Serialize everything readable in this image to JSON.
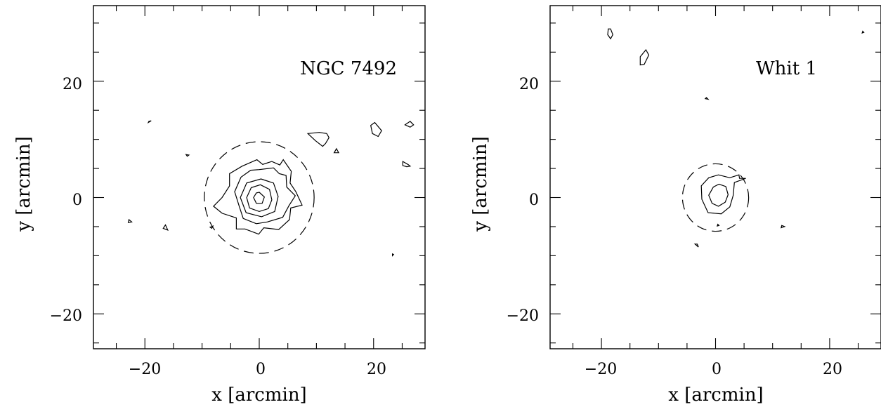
{
  "chart_data": [
    {
      "type": "contour",
      "title": "NGC 7492",
      "xlabel": "x [arcmin]",
      "ylabel": "y [arcmin]",
      "xlim": [
        -29,
        29
      ],
      "ylim": [
        -26,
        33
      ],
      "x_ticks_major": [
        -20,
        0,
        20
      ],
      "y_ticks_major": [
        -20,
        0,
        20
      ],
      "x_tick_labels": [
        "−20",
        "0",
        "20"
      ],
      "y_tick_labels": [
        "−20",
        "0",
        "20"
      ],
      "minor_tick_step": 5,
      "dashed_circle": {
        "center": [
          0,
          0
        ],
        "radius": 9.6
      },
      "contours": [
        [
          [
            0,
            0.9
          ],
          [
            0.9,
            0.1
          ],
          [
            0.5,
            -1
          ],
          [
            -0.5,
            -1
          ],
          [
            -1,
            0
          ],
          [
            -0.5,
            0.8
          ]
        ],
        [
          [
            0.2,
            2.2
          ],
          [
            1.8,
            1.4
          ],
          [
            2.2,
            -0.4
          ],
          [
            1.6,
            -1.9
          ],
          [
            0,
            -2.4
          ],
          [
            -1.7,
            -1.8
          ],
          [
            -2.2,
            0
          ],
          [
            -1.4,
            1.7
          ]
        ],
        [
          [
            0.3,
            3.2
          ],
          [
            2.5,
            2.5
          ],
          [
            3.3,
            0.2
          ],
          [
            2.7,
            -2.4
          ],
          [
            0.4,
            -3.3
          ],
          [
            -2.3,
            -2.6
          ],
          [
            -3.3,
            0
          ],
          [
            -2.2,
            2.5
          ]
        ],
        [
          [
            0,
            4.8
          ],
          [
            2.5,
            5.1
          ],
          [
            3.5,
            4.1
          ],
          [
            4.7,
            3.8
          ],
          [
            4.8,
            1.8
          ],
          [
            6.3,
            0.3
          ],
          [
            5.2,
            -1.4
          ],
          [
            4.1,
            -3.4
          ],
          [
            1.4,
            -4.2
          ],
          [
            -0.5,
            -4.5
          ],
          [
            -2.8,
            -3.6
          ],
          [
            -3.5,
            -1.5
          ],
          [
            -4.3,
            1
          ],
          [
            -3.2,
            3.5
          ],
          [
            -1.5,
            4.7
          ]
        ],
        [
          [
            -0.4,
            6.5
          ],
          [
            0.6,
            5.7
          ],
          [
            2.2,
            6.2
          ],
          [
            3.6,
            5.6
          ],
          [
            4.2,
            6.5
          ],
          [
            5.6,
            4.5
          ],
          [
            5.4,
            2.5
          ],
          [
            6.4,
            1
          ],
          [
            7.5,
            -1.3
          ],
          [
            5.5,
            -1.8
          ],
          [
            5.3,
            -3.8
          ],
          [
            3.4,
            -5.5
          ],
          [
            0.8,
            -5.2
          ],
          [
            -0.1,
            -6.3
          ],
          [
            -2.5,
            -5.4
          ],
          [
            -4,
            -5.4
          ],
          [
            -4,
            -3.5
          ],
          [
            -6.5,
            -2.7
          ],
          [
            -8,
            -1.5
          ],
          [
            -6.5,
            0
          ],
          [
            -5.2,
            2
          ],
          [
            -5.2,
            4.1
          ],
          [
            -3,
            5.4
          ]
        ],
        [
          [
            10.5,
            11.2
          ],
          [
            11.8,
            11
          ],
          [
            12.2,
            10.3
          ],
          [
            11.6,
            9.3
          ],
          [
            11.1,
            8.8
          ],
          [
            9.8,
            9.8
          ],
          [
            8.5,
            11
          ]
        ],
        [
          [
            13.5,
            8.4
          ],
          [
            13.9,
            7.7
          ],
          [
            13.1,
            7.7
          ]
        ],
        [
          [
            19.5,
            12.4
          ],
          [
            20.2,
            12.9
          ],
          [
            21.4,
            11.5
          ],
          [
            20.8,
            10.5
          ],
          [
            19.8,
            11
          ]
        ],
        [
          [
            25.5,
            12.5
          ],
          [
            26.4,
            13.1
          ],
          [
            27,
            12.5
          ],
          [
            26.4,
            12.1
          ]
        ],
        [
          [
            25.1,
            6.2
          ],
          [
            26,
            5.7
          ],
          [
            26.4,
            5.4
          ],
          [
            25.8,
            5.3
          ],
          [
            25.1,
            5.5
          ]
        ],
        [
          [
            -19.3,
            13.1
          ],
          [
            -18.9,
            13.2
          ],
          [
            -19.4,
            12.9
          ]
        ],
        [
          [
            -12.8,
            7.4
          ],
          [
            -12.3,
            7.3
          ],
          [
            -12.6,
            7.1
          ]
        ],
        [
          [
            -22.8,
            -3.8
          ],
          [
            -22.3,
            -4.2
          ],
          [
            -22.9,
            -4.3
          ]
        ],
        [
          [
            -16.4,
            -4.7
          ],
          [
            -16,
            -5.6
          ],
          [
            -16.8,
            -5.3
          ]
        ],
        [
          [
            23.3,
            -10
          ],
          [
            23.5,
            -9.8
          ],
          [
            23.3,
            -9.7
          ]
        ],
        [
          [
            -8.6,
            -5.1
          ],
          [
            -8.1,
            -4.9
          ],
          [
            -8.3,
            -5.3
          ]
        ]
      ]
    },
    {
      "type": "contour",
      "title": "Whit 1",
      "xlabel": "x [arcmin]",
      "ylabel": "y [arcmin]",
      "xlim": [
        -29,
        29
      ],
      "ylim": [
        -26,
        33
      ],
      "x_ticks_major": [
        -20,
        0,
        20
      ],
      "y_ticks_major": [
        -20,
        0,
        20
      ],
      "x_tick_labels": [
        "−20",
        "0",
        "20"
      ],
      "y_tick_labels": [
        "−20",
        "0",
        "20"
      ],
      "minor_tick_step": 5,
      "dashed_circle": {
        "center": [
          0,
          0
        ],
        "radius": 5.8
      },
      "contours": [
        [
          [
            0.6,
            2.3
          ],
          [
            1.8,
            1.9
          ],
          [
            2.2,
            0.5
          ],
          [
            1.7,
            -0.8
          ],
          [
            0.5,
            -1.5
          ],
          [
            -0.6,
            -1
          ],
          [
            -1.2,
            0.4
          ],
          [
            -0.4,
            1.8
          ]
        ],
        [
          [
            0.5,
            3.9
          ],
          [
            2.5,
            3.4
          ],
          [
            4.1,
            3.9
          ],
          [
            4.2,
            3.3
          ],
          [
            5.3,
            3.3
          ],
          [
            3.3,
            2.6
          ],
          [
            3.1,
            0.4
          ],
          [
            2.5,
            -1.6
          ],
          [
            1,
            -2.8
          ],
          [
            -1.3,
            -2.6
          ],
          [
            -2.4,
            -0.3
          ],
          [
            -2.5,
            2
          ],
          [
            -1.2,
            3.4
          ]
        ],
        [
          [
            -18.4,
            29
          ],
          [
            -18,
            28
          ],
          [
            -18.4,
            27.3
          ],
          [
            -18.9,
            28
          ],
          [
            -18.8,
            29
          ]
        ],
        [
          [
            -12.2,
            25.4
          ],
          [
            -11.7,
            24.5
          ],
          [
            -12.5,
            22.9
          ],
          [
            -13.2,
            22.8
          ],
          [
            -13.2,
            24.2
          ]
        ],
        [
          [
            -1.6,
            17.2
          ],
          [
            -1.3,
            16.9
          ],
          [
            -1.8,
            17
          ]
        ],
        [
          [
            11.6,
            -4.8
          ],
          [
            12.1,
            -5
          ],
          [
            11.5,
            -5.2
          ]
        ],
        [
          [
            -3.2,
            -8
          ],
          [
            -3,
            -8.5
          ],
          [
            -3.6,
            -8
          ]
        ],
        [
          [
            0.4,
            -4.6
          ],
          [
            0.6,
            -4.8
          ],
          [
            0.3,
            -4.9
          ]
        ],
        [
          [
            25.8,
            28.6
          ],
          [
            26,
            28.4
          ],
          [
            25.7,
            28.3
          ]
        ]
      ]
    }
  ]
}
